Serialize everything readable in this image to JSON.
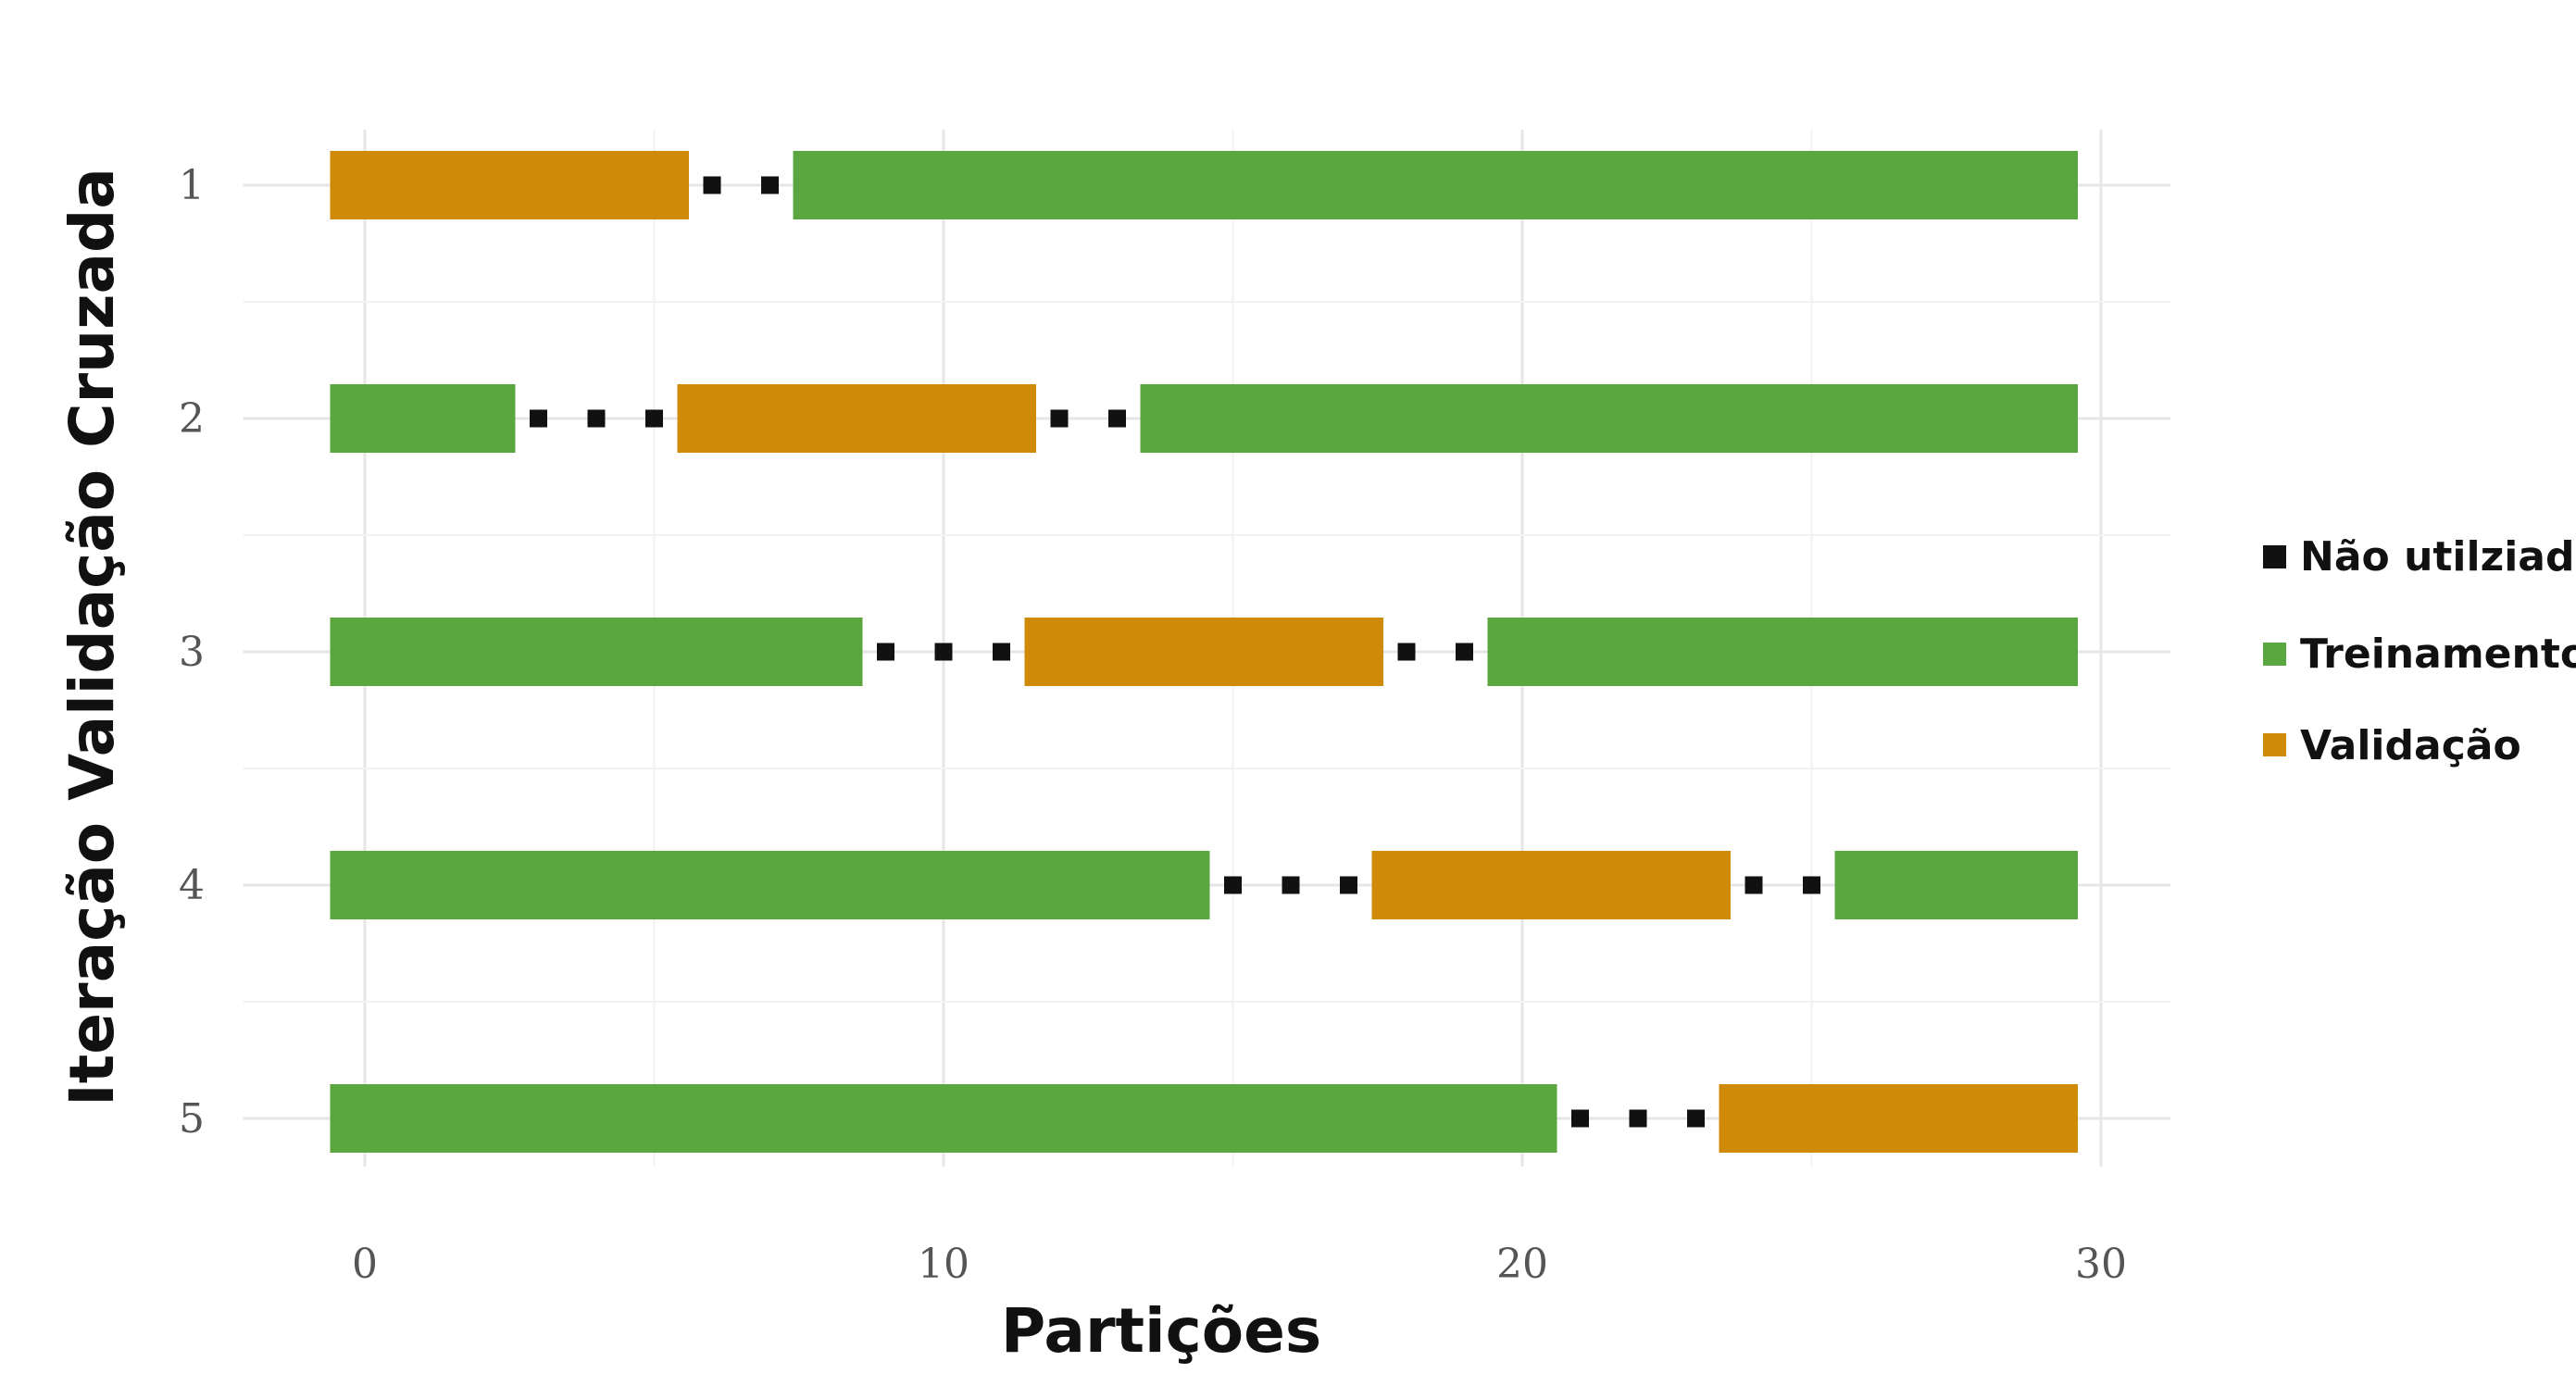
{
  "chart_data": {
    "type": "bar",
    "subtype": "horizontal-segmented-timeline",
    "title": "",
    "xlabel": "Partições",
    "ylabel": "Iteração Validação Cruzada",
    "xlim": [
      -1.3,
      30.4
    ],
    "xticks": [
      0,
      10,
      20,
      30
    ],
    "xtick_labels": [
      "0",
      "10",
      "20",
      "30"
    ],
    "ytick_labels": [
      "1",
      "2",
      "3",
      "4",
      "5"
    ],
    "grid": true,
    "legend_position": "right",
    "legend": [
      {
        "key": "unused",
        "label": "Não utilziado",
        "color": "#111111"
      },
      {
        "key": "train",
        "label": "Treinamento",
        "color": "#5aa63f"
      },
      {
        "key": "valid",
        "label": "Validação",
        "color": "#cf8a07"
      }
    ],
    "iterations": [
      {
        "label": "1",
        "segments": [
          {
            "type": "valid",
            "start": -0.6,
            "end": 5.6
          },
          {
            "type": "train",
            "start": 7.4,
            "end": 29.6
          }
        ],
        "unused_points": [
          6.0,
          7.0
        ]
      },
      {
        "label": "2",
        "segments": [
          {
            "type": "train",
            "start": -0.6,
            "end": 2.6
          },
          {
            "type": "valid",
            "start": 5.4,
            "end": 11.6
          },
          {
            "type": "train",
            "start": 13.4,
            "end": 29.6
          }
        ],
        "unused_points": [
          3.0,
          4.0,
          5.0,
          12.0,
          13.0
        ]
      },
      {
        "label": "3",
        "segments": [
          {
            "type": "train",
            "start": -0.6,
            "end": 8.6
          },
          {
            "type": "valid",
            "start": 11.4,
            "end": 17.6
          },
          {
            "type": "train",
            "start": 19.4,
            "end": 29.6
          }
        ],
        "unused_points": [
          9.0,
          10.0,
          11.0,
          18.0,
          19.0
        ]
      },
      {
        "label": "4",
        "segments": [
          {
            "type": "train",
            "start": -0.6,
            "end": 14.6
          },
          {
            "type": "valid",
            "start": 17.4,
            "end": 23.6
          },
          {
            "type": "train",
            "start": 25.4,
            "end": 29.6
          }
        ],
        "unused_points": [
          15.0,
          16.0,
          17.0,
          24.0,
          25.0
        ]
      },
      {
        "label": "5",
        "segments": [
          {
            "type": "train",
            "start": -0.6,
            "end": 20.6
          },
          {
            "type": "valid",
            "start": 23.4,
            "end": 29.6
          }
        ],
        "unused_points": [
          21.0,
          22.0,
          23.0
        ]
      }
    ]
  }
}
